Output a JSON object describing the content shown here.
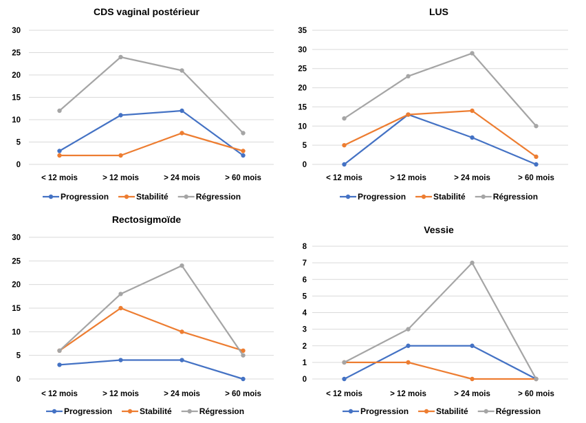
{
  "colors": {
    "progression": "#4472C4",
    "stabilite": "#ED7D31",
    "regression": "#A5A5A5",
    "grid": "#D9D9D9"
  },
  "chart_data": [
    {
      "type": "line",
      "title": "CDS vaginal postérieur",
      "categories": [
        "< 12 mois",
        "> 12 mois",
        "> 24 mois",
        "> 60 mois"
      ],
      "yticks": [
        0,
        5,
        10,
        15,
        20,
        25,
        30
      ],
      "ylim": [
        0,
        30
      ],
      "grid": true,
      "legend": "bottom",
      "series": [
        {
          "name": "Progression",
          "color": "#4472C4",
          "values": [
            3,
            11,
            12,
            2
          ]
        },
        {
          "name": "Stabilité",
          "color": "#ED7D31",
          "values": [
            2,
            2,
            7,
            3
          ]
        },
        {
          "name": "Régression",
          "color": "#A5A5A5",
          "values": [
            12,
            24,
            21,
            7
          ]
        }
      ]
    },
    {
      "type": "line",
      "title": "LUS",
      "categories": [
        "< 12 mois",
        "> 12 mois",
        "> 24 mois",
        "> 60 mois"
      ],
      "yticks": [
        0,
        5,
        10,
        15,
        20,
        25,
        30,
        35
      ],
      "ylim": [
        0,
        35
      ],
      "grid": true,
      "legend": "bottom",
      "series": [
        {
          "name": "Progression",
          "color": "#4472C4",
          "values": [
            0,
            13,
            7,
            0
          ]
        },
        {
          "name": "Stabilité",
          "color": "#ED7D31",
          "values": [
            5,
            13,
            14,
            2
          ]
        },
        {
          "name": "Régression",
          "color": "#A5A5A5",
          "values": [
            12,
            23,
            29,
            10
          ]
        }
      ]
    },
    {
      "type": "line",
      "title": "Rectosigmoïde",
      "categories": [
        "< 12 mois",
        "> 12 mois",
        "> 24 mois",
        "> 60 mois"
      ],
      "yticks": [
        0,
        5,
        10,
        15,
        20,
        25,
        30
      ],
      "ylim": [
        0,
        30
      ],
      "grid": true,
      "legend": "bottom",
      "series": [
        {
          "name": "Progression",
          "color": "#4472C4",
          "values": [
            3,
            4,
            4,
            0
          ]
        },
        {
          "name": "Stabilité",
          "color": "#ED7D31",
          "values": [
            6,
            15,
            10,
            6
          ]
        },
        {
          "name": "Régression",
          "color": "#A5A5A5",
          "values": [
            6,
            18,
            24,
            5
          ]
        }
      ]
    },
    {
      "type": "line",
      "title": "Vessie",
      "categories": [
        "< 12 mois",
        "> 12 mois",
        "> 24 mois",
        "> 60 mois"
      ],
      "yticks": [
        0,
        1,
        2,
        3,
        4,
        5,
        6,
        7,
        8
      ],
      "ylim": [
        0,
        8
      ],
      "grid": true,
      "legend": "bottom",
      "series": [
        {
          "name": "Progression",
          "color": "#4472C4",
          "values": [
            0,
            2,
            2,
            0
          ]
        },
        {
          "name": "Stabilité",
          "color": "#ED7D31",
          "values": [
            1,
            1,
            0,
            0
          ]
        },
        {
          "name": "Régression",
          "color": "#A5A5A5",
          "values": [
            1,
            3,
            7,
            0
          ]
        }
      ]
    }
  ]
}
